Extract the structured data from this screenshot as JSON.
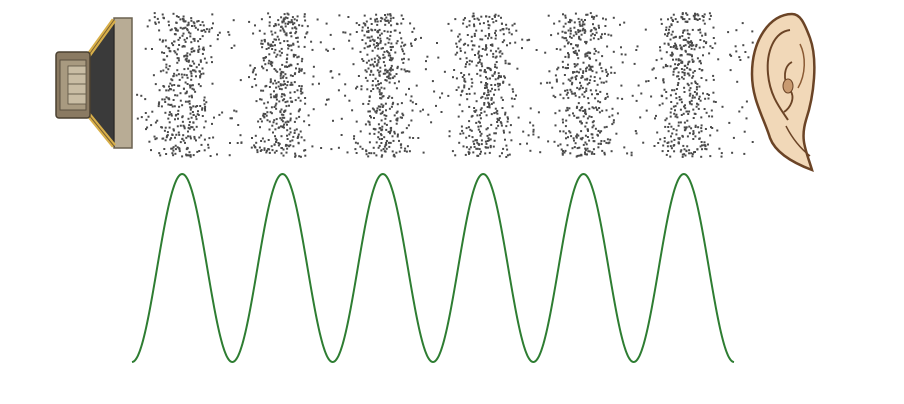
{
  "diagram": {
    "wave": {
      "cycles": 6,
      "color": "#2e7d32"
    },
    "particles": {
      "compression_bands": 6,
      "color": "#4a4a4a"
    },
    "source": {
      "icon": "speaker-icon",
      "colors": {
        "frame": "#b8ac95",
        "cone": "#3a3a3a",
        "struts": "#d9b04a",
        "magnet": "#8a7a62"
      }
    },
    "receiver": {
      "icon": "ear-icon",
      "colors": {
        "skin": "#f1d8b8",
        "outline": "#6b4426"
      }
    }
  }
}
